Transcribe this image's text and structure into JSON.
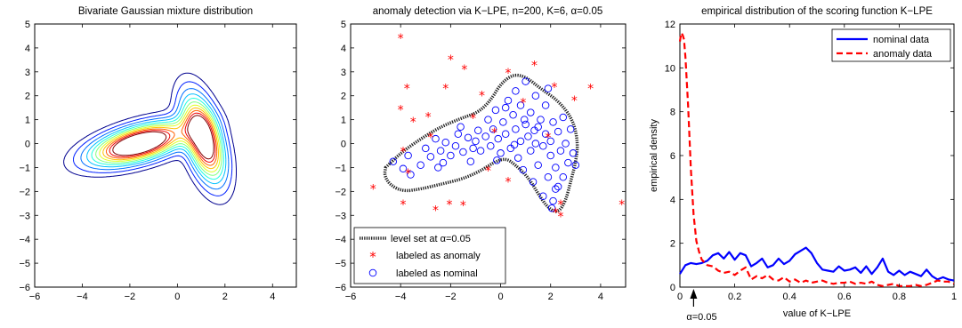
{
  "chart_data": [
    {
      "type": "contour",
      "title": "Bivariate Gaussian mixture distribution",
      "xlabel": "",
      "ylabel": "",
      "xlim": [
        -6,
        5
      ],
      "ylim": [
        -6,
        5
      ],
      "xticks": [
        -6,
        -4,
        -2,
        0,
        2,
        4
      ],
      "yticks": [
        -6,
        -5,
        -4,
        -3,
        -2,
        -1,
        0,
        1,
        2,
        3,
        4,
        5
      ],
      "components": [
        {
          "mean": [
            -1.6,
            0.0
          ],
          "sx": 1.25,
          "sy": 0.55,
          "rho": 0.55,
          "weight": 0.55
        },
        {
          "mean": [
            1.1,
            0.2
          ],
          "sx": 0.55,
          "sy": 1.1,
          "rho": -0.5,
          "weight": 0.45
        }
      ],
      "levels": [
        0.006,
        0.013,
        0.022,
        0.032,
        0.042,
        0.052,
        0.062,
        0.072,
        0.082,
        0.092,
        0.102
      ],
      "level_colors": [
        "#00008f",
        "#0020ff",
        "#0070ff",
        "#00bfff",
        "#20ffdf",
        "#80ff80",
        "#dfff20",
        "#ffbf00",
        "#ff6000",
        "#ef0000",
        "#800000"
      ]
    },
    {
      "type": "scatter",
      "title": "anomaly detection via K−LPE, n=200, K=6, α=0.05",
      "xlabel": "",
      "ylabel": "",
      "xlim": [
        -6,
        5
      ],
      "ylim": [
        -6,
        5
      ],
      "xticks": [
        -6,
        -4,
        -2,
        0,
        2,
        4
      ],
      "yticks": [
        -6,
        -5,
        -4,
        -3,
        -2,
        -1,
        0,
        1,
        2,
        3,
        4,
        5
      ],
      "level_set_value": 0.05,
      "legend_position": "bottom-left",
      "legend": [
        {
          "label": "level set at α=0.05",
          "style": "dotted-thick",
          "color": "#222222"
        },
        {
          "label": "labeled as anomaly",
          "style": "star",
          "color": "#ff0000"
        },
        {
          "label": "labeled as nominal",
          "style": "circle",
          "color": "#0000ff"
        }
      ],
      "anomaly_points": [
        [
          -4.0,
          4.45
        ],
        [
          -2.0,
          3.55
        ],
        [
          -1.45,
          3.15
        ],
        [
          -3.75,
          2.35
        ],
        [
          -2.2,
          2.35
        ],
        [
          -4.0,
          1.45
        ],
        [
          -3.5,
          0.95
        ],
        [
          -2.9,
          1.15
        ],
        [
          -0.75,
          2.05
        ],
        [
          0.3,
          3.0
        ],
        [
          1.35,
          3.3
        ],
        [
          2.15,
          2.4
        ],
        [
          2.95,
          1.85
        ],
        [
          3.6,
          2.35
        ],
        [
          -1.1,
          1.1
        ],
        [
          -3.9,
          -0.3
        ],
        [
          -5.1,
          -1.85
        ],
        [
          -3.9,
          -2.5
        ],
        [
          -2.6,
          -2.75
        ],
        [
          -2.05,
          -2.5
        ],
        [
          -1.5,
          -2.55
        ],
        [
          0.3,
          -1.55
        ],
        [
          -0.5,
          -1.1
        ],
        [
          2.2,
          -2.85
        ],
        [
          2.4,
          -2.5
        ],
        [
          2.4,
          -3.0
        ],
        [
          4.85,
          -2.5
        ],
        [
          1.9,
          0.3
        ],
        [
          -0.25,
          0.5
        ],
        [
          -3.7,
          -1.2
        ],
        [
          0.9,
          1.75
        ],
        [
          -2.8,
          0.3
        ]
      ],
      "nominal_points": [
        [
          -4.3,
          -0.75
        ],
        [
          -3.9,
          -1.05
        ],
        [
          -3.6,
          -1.3
        ],
        [
          -3.2,
          -0.9
        ],
        [
          -3.0,
          -0.2
        ],
        [
          -2.8,
          -0.55
        ],
        [
          -2.5,
          -1.0
        ],
        [
          -2.4,
          -0.3
        ],
        [
          -2.2,
          0.05
        ],
        [
          -2.0,
          -0.5
        ],
        [
          -1.8,
          -0.1
        ],
        [
          -1.7,
          0.4
        ],
        [
          -1.5,
          -0.35
        ],
        [
          -1.3,
          0.25
        ],
        [
          -1.2,
          -0.75
        ],
        [
          -1.0,
          0.1
        ],
        [
          -0.9,
          0.55
        ],
        [
          -0.8,
          -0.3
        ],
        [
          -0.6,
          0.3
        ],
        [
          -0.5,
          1.0
        ],
        [
          -0.4,
          -0.1
        ],
        [
          -0.3,
          0.6
        ],
        [
          -0.2,
          1.4
        ],
        [
          -0.1,
          0.2
        ],
        [
          0.0,
          -0.4
        ],
        [
          0.1,
          0.9
        ],
        [
          0.2,
          0.4
        ],
        [
          0.3,
          1.8
        ],
        [
          0.4,
          -0.2
        ],
        [
          0.5,
          1.2
        ],
        [
          0.6,
          0.6
        ],
        [
          0.6,
          2.2
        ],
        [
          0.7,
          -0.6
        ],
        [
          0.8,
          0.1
        ],
        [
          0.8,
          1.6
        ],
        [
          0.9,
          -1.1
        ],
        [
          1.0,
          0.8
        ],
        [
          1.0,
          2.6
        ],
        [
          1.1,
          0.3
        ],
        [
          1.2,
          -0.3
        ],
        [
          1.2,
          1.3
        ],
        [
          1.3,
          -1.6
        ],
        [
          1.4,
          0.0
        ],
        [
          1.4,
          2.0
        ],
        [
          1.5,
          0.7
        ],
        [
          1.5,
          -0.9
        ],
        [
          1.6,
          1.0
        ],
        [
          1.7,
          -0.1
        ],
        [
          1.7,
          -2.2
        ],
        [
          1.8,
          0.4
        ],
        [
          1.8,
          1.6
        ],
        [
          1.9,
          -1.4
        ],
        [
          2.0,
          0.1
        ],
        [
          2.0,
          -0.5
        ],
        [
          2.1,
          0.9
        ],
        [
          2.1,
          -2.4
        ],
        [
          2.2,
          -1.0
        ],
        [
          2.3,
          -1.8
        ],
        [
          2.3,
          0.5
        ],
        [
          2.4,
          -0.3
        ],
        [
          2.5,
          1.1
        ],
        [
          2.5,
          -1.4
        ],
        [
          2.6,
          0.0
        ],
        [
          2.7,
          -0.8
        ],
        [
          2.8,
          0.6
        ],
        [
          2.9,
          -0.4
        ],
        [
          3.0,
          -0.9
        ],
        [
          -3.7,
          -0.5
        ],
        [
          -2.6,
          0.2
        ],
        [
          -1.1,
          -0.2
        ],
        [
          0.2,
          1.5
        ],
        [
          1.35,
          0.55
        ],
        [
          0.55,
          -0.05
        ],
        [
          -0.15,
          -0.7
        ],
        [
          1.9,
          2.3
        ],
        [
          2.2,
          -1.9
        ],
        [
          2.05,
          -2.7
        ],
        [
          0.95,
          1.0
        ],
        [
          -2.3,
          -0.8
        ],
        [
          -1.6,
          0.7
        ]
      ],
      "level_set_path": [
        [
          -4.6,
          -1.0
        ],
        [
          -4.0,
          -0.4
        ],
        [
          -3.2,
          0.2
        ],
        [
          -2.4,
          0.7
        ],
        [
          -1.6,
          1.05
        ],
        [
          -0.9,
          1.3
        ],
        [
          -0.4,
          1.8
        ],
        [
          0.0,
          2.5
        ],
        [
          0.5,
          2.9
        ],
        [
          1.0,
          2.8
        ],
        [
          1.6,
          2.3
        ],
        [
          2.3,
          1.8
        ],
        [
          2.9,
          1.0
        ],
        [
          3.1,
          0.0
        ],
        [
          3.0,
          -0.8
        ],
        [
          2.8,
          -1.6
        ],
        [
          2.6,
          -2.4
        ],
        [
          2.3,
          -2.9
        ],
        [
          1.9,
          -2.7
        ],
        [
          1.5,
          -2.1
        ],
        [
          1.1,
          -1.4
        ],
        [
          0.6,
          -0.9
        ],
        [
          0.2,
          -0.6
        ],
        [
          -0.3,
          -0.8
        ],
        [
          -0.9,
          -1.2
        ],
        [
          -1.6,
          -1.5
        ],
        [
          -2.4,
          -1.7
        ],
        [
          -3.2,
          -1.9
        ],
        [
          -3.9,
          -2.0
        ],
        [
          -4.4,
          -1.75
        ],
        [
          -4.65,
          -1.35
        ],
        [
          -4.6,
          -1.0
        ]
      ]
    },
    {
      "type": "line",
      "title": "empirical distribution of the scoring function K−LPE",
      "xlabel": "value of K−LPE",
      "ylabel": "empirical density",
      "xlim": [
        0,
        1
      ],
      "ylim": [
        0,
        12
      ],
      "xticks": [
        0,
        0.2,
        0.4,
        0.6,
        0.8,
        1
      ],
      "yticks": [
        0,
        2,
        4,
        6,
        8,
        10,
        12
      ],
      "legend_position": "top-right",
      "annotation": "α=0.05",
      "annotation_x": 0.05,
      "series": [
        {
          "name": "nominal data",
          "color": "#0000ff",
          "style": "solid",
          "x": [
            0,
            0.02,
            0.04,
            0.06,
            0.08,
            0.1,
            0.12,
            0.14,
            0.16,
            0.18,
            0.2,
            0.22,
            0.24,
            0.26,
            0.28,
            0.3,
            0.32,
            0.34,
            0.36,
            0.38,
            0.4,
            0.42,
            0.44,
            0.46,
            0.48,
            0.5,
            0.52,
            0.54,
            0.56,
            0.58,
            0.6,
            0.62,
            0.64,
            0.66,
            0.68,
            0.7,
            0.72,
            0.74,
            0.76,
            0.78,
            0.8,
            0.82,
            0.84,
            0.86,
            0.88,
            0.9,
            0.92,
            0.94,
            0.96,
            0.98,
            1
          ],
          "y": [
            0.6,
            1.0,
            1.1,
            1.05,
            1.1,
            1.2,
            1.45,
            1.55,
            1.3,
            1.6,
            1.25,
            1.55,
            1.45,
            0.95,
            1.1,
            1.3,
            0.9,
            1.0,
            1.3,
            1.05,
            1.2,
            1.5,
            1.65,
            1.8,
            1.55,
            1.1,
            0.8,
            0.75,
            0.7,
            0.95,
            0.75,
            0.8,
            0.9,
            0.65,
            0.95,
            0.6,
            0.9,
            1.3,
            0.7,
            0.55,
            0.75,
            0.55,
            0.7,
            0.6,
            0.5,
            0.8,
            0.5,
            0.35,
            0.45,
            0.35,
            0.3
          ]
        },
        {
          "name": "anomaly data",
          "color": "#ff0000",
          "style": "dashed",
          "x": [
            0,
            0.005,
            0.01,
            0.015,
            0.02,
            0.03,
            0.04,
            0.05,
            0.06,
            0.07,
            0.08,
            0.1,
            0.12,
            0.14,
            0.16,
            0.18,
            0.2,
            0.22,
            0.24,
            0.26,
            0.28,
            0.3,
            0.32,
            0.34,
            0.36,
            0.38,
            0.4,
            0.42,
            0.44,
            0.46,
            0.48,
            0.5,
            0.52,
            0.54,
            0.56,
            0.58,
            0.6,
            0.62,
            0.64,
            0.66,
            0.68,
            0.7,
            0.72,
            0.74,
            0.76,
            0.78,
            0.8,
            0.82,
            0.84,
            0.86,
            0.88,
            0.9,
            0.92,
            0.94,
            0.96,
            0.98,
            1
          ],
          "y": [
            11.2,
            11.6,
            11.5,
            11.3,
            10.5,
            8.3,
            5.4,
            3.3,
            2.1,
            1.6,
            1.25,
            1.0,
            0.95,
            0.75,
            0.65,
            0.7,
            0.55,
            0.75,
            0.9,
            0.35,
            0.5,
            0.4,
            0.55,
            0.35,
            0.3,
            0.45,
            0.25,
            0.35,
            0.2,
            0.3,
            0.2,
            0.25,
            0.3,
            0.2,
            0.15,
            0.2,
            0.2,
            0.25,
            0.15,
            0.2,
            0.15,
            0.25,
            0.1,
            0.05,
            0.1,
            0.15,
            0.05,
            0.05,
            0.05,
            0.1,
            0.05,
            0.1,
            0.2,
            0.3,
            0.25,
            0.25,
            0.15
          ]
        }
      ]
    }
  ]
}
